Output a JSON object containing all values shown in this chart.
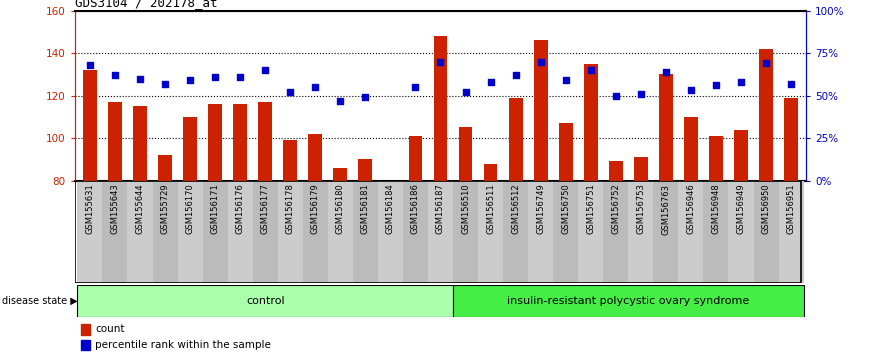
{
  "title": "GDS3104 / 202178_at",
  "samples": [
    "GSM155631",
    "GSM155643",
    "GSM155644",
    "GSM155729",
    "GSM156170",
    "GSM156171",
    "GSM156176",
    "GSM156177",
    "GSM156178",
    "GSM156179",
    "GSM156180",
    "GSM156181",
    "GSM156184",
    "GSM156186",
    "GSM156187",
    "GSM156510",
    "GSM156511",
    "GSM156512",
    "GSM156749",
    "GSM156750",
    "GSM156751",
    "GSM156752",
    "GSM156753",
    "GSM156763",
    "GSM156946",
    "GSM156948",
    "GSM156949",
    "GSM156950",
    "GSM156951"
  ],
  "bar_values": [
    132,
    117,
    115,
    92,
    110,
    116,
    116,
    117,
    99,
    102,
    86,
    90,
    80,
    101,
    148,
    105,
    88,
    119,
    146,
    107,
    135,
    89,
    91,
    130,
    110,
    101,
    104,
    142,
    119
  ],
  "dot_values": [
    68,
    62,
    60,
    57,
    59,
    61,
    61,
    65,
    52,
    55,
    47,
    49,
    null,
    55,
    70,
    52,
    58,
    62,
    70,
    59,
    65,
    50,
    51,
    64,
    53,
    56,
    58,
    69,
    57
  ],
  "control_count": 15,
  "disease_count": 14,
  "ymin": 80,
  "ymax": 160,
  "yticks": [
    80,
    100,
    120,
    140,
    160
  ],
  "right_yticks_pct": [
    0,
    25,
    50,
    75,
    100
  ],
  "bar_color": "#cc2200",
  "dot_color": "#0000cc",
  "control_bg": "#aaffaa",
  "disease_bg": "#44ee44",
  "xlabel_bg_even": "#cccccc",
  "xlabel_bg_odd": "#bbbbbb",
  "bar_bottom": 80
}
